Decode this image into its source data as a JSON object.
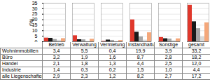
{
  "chart_data": {
    "type": "bar",
    "y_label": "(%)",
    "categories": [
      "Betrieb",
      "Verwaltung",
      "Vermietung",
      "Instandhaltung",
      "Sonstige",
      "gesamt"
    ],
    "ylim": [
      0,
      35
    ],
    "yticks": [
      0,
      5,
      10,
      15,
      20,
      25,
      30,
      35
    ],
    "grid": true,
    "series": [
      {
        "name": "Wohnimmobilien",
        "color": "#e0382c",
        "values": [
          3.4,
          5.5,
          0.4,
          19.9,
          3.9,
          33.2
        ],
        "value_labels": [
          "3,4",
          "5,5",
          "0,4",
          "19,9",
          "3,9",
          "33,2"
        ]
      },
      {
        "name": "Büro",
        "color": "#1a1a1a",
        "values": [
          3.2,
          1.9,
          1.6,
          8.7,
          2.8,
          18.2
        ],
        "value_labels": [
          "3,2",
          "1,9",
          "1,6",
          "8,7",
          "2,8",
          "18,2"
        ]
      },
      {
        "name": "Handel",
        "color": "#a6a6a6",
        "values": [
          2.1,
          1.8,
          1.3,
          4.4,
          2.5,
          12.0
        ],
        "value_labels": [
          "2,1",
          "1,8",
          "1,3",
          "4,4",
          "2,5",
          "12,0"
        ]
      },
      {
        "name": "Industrie",
        "color": "#d9d9d9",
        "values": [
          1.4,
          0.3,
          0.2,
          1.5,
          1.0,
          4.4
        ],
        "value_labels": [
          "1,4",
          "0,3",
          "0,2",
          "1,5",
          "1,0",
          "4,4"
        ]
      },
      {
        "name": "alle Liegenschaften",
        "color": "#f4a77a",
        "values": [
          2.9,
          2.3,
          1.2,
          8.2,
          2.7,
          17.2
        ],
        "value_labels": [
          "2,9",
          "2,3",
          "1,2",
          "8,2",
          "2,7",
          "17,2"
        ]
      }
    ]
  }
}
